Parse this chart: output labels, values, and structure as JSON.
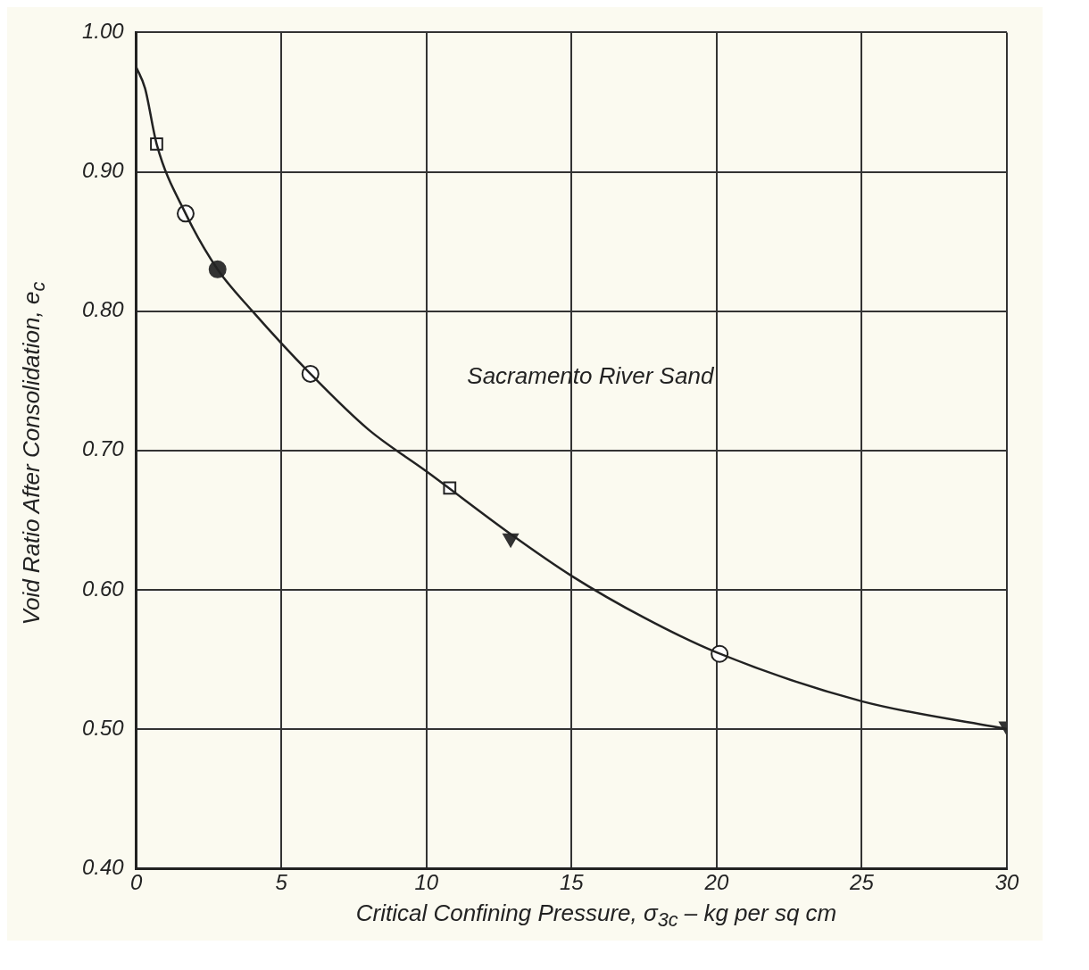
{
  "chart_data": {
    "type": "scatter",
    "xlabel": "Critical Confining Pressure, σ$_{3c}$ – kg per sq cm",
    "ylabel": "Void Ratio After Consolidation, e$_{c}$",
    "annotations": [
      "Sacramento River Sand"
    ],
    "xlim": [
      0,
      30
    ],
    "xticks": [
      0,
      5,
      10,
      15,
      20,
      25,
      30
    ],
    "ylim": [
      0.4,
      1.0
    ],
    "yticks": [
      {
        "value": 0.4,
        "label": "0.40"
      },
      {
        "value": 0.5,
        "label": "0.50"
      },
      {
        "value": 0.6,
        "label": "0.60"
      },
      {
        "value": 0.7,
        "label": "0.70"
      },
      {
        "value": 0.8,
        "label": "0.80"
      },
      {
        "value": 0.9,
        "label": "0.90"
      },
      {
        "value": 1.0,
        "label": "1.00"
      }
    ],
    "grid": true,
    "legend": false,
    "series": [
      {
        "type": "line",
        "marker": "none",
        "color": "#222222",
        "x": [
          0,
          0.3,
          0.7,
          1.7,
          2.8,
          4,
          6,
          8,
          10,
          12.9,
          15,
          17.5,
          20,
          25,
          30
        ],
        "values": [
          0.975,
          0.96,
          0.92,
          0.87,
          0.83,
          0.8,
          0.755,
          0.715,
          0.685,
          0.64,
          0.61,
          0.58,
          0.555,
          0.52,
          0.5
        ]
      },
      {
        "marker": "square",
        "color": "#222222",
        "x": [
          0.7,
          10.8
        ],
        "values": [
          0.92,
          0.673
        ]
      },
      {
        "marker": "circle",
        "color": "#222222",
        "x": [
          1.7,
          6,
          20.1
        ],
        "values": [
          0.87,
          0.755,
          0.554
        ]
      },
      {
        "marker": "circle",
        "color": "#333333",
        "x": [
          2.8
        ],
        "values": [
          0.83
        ]
      },
      {
        "marker": "triangle",
        "color": "#333333",
        "x": [
          12.9,
          30
        ],
        "values": [
          0.637,
          0.502
        ]
      }
    ]
  }
}
